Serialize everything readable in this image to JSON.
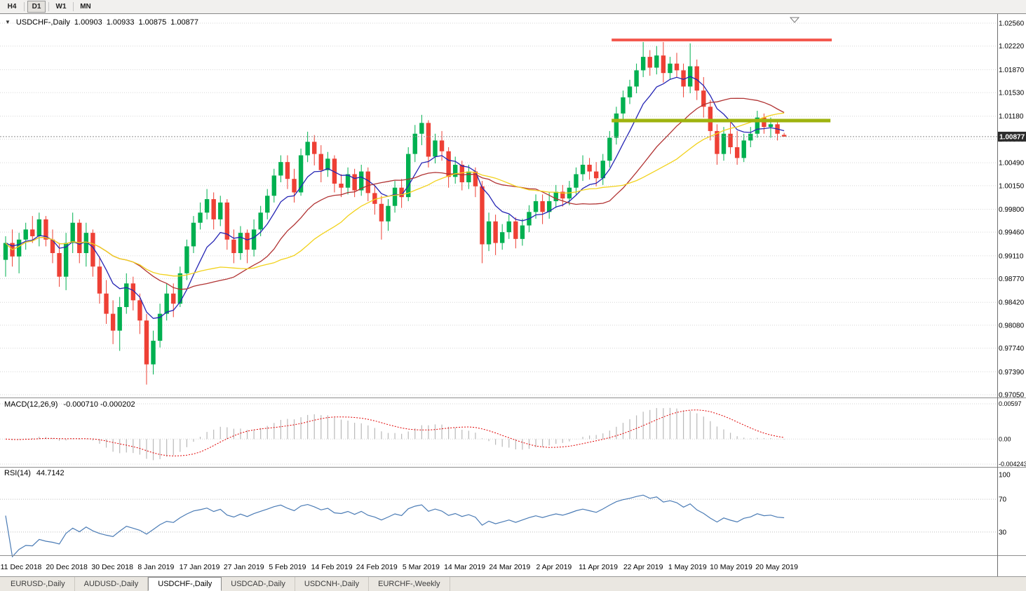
{
  "toolbar": {
    "buttons": [
      {
        "label": "H4",
        "active": false
      },
      {
        "label": "D1",
        "active": true
      },
      {
        "label": "W1",
        "active": false
      },
      {
        "label": "MN",
        "active": false
      }
    ]
  },
  "chart_data": {
    "type": "candlestick",
    "symbol": "USDCHF-",
    "timeframe": "Daily",
    "title": {
      "symbol_label": "USDCHF-,Daily",
      "open": "1.00903",
      "high": "1.00933",
      "low": "1.00875",
      "close": "1.00877"
    },
    "current_price": "1.00877",
    "colors": {
      "up": "#00b050",
      "down": "#ee4035",
      "grid": "#d6d6d6",
      "background": "#ffffff",
      "last_price_line": "#8f8f8f",
      "last_price_tag": "#2b2b2b"
    },
    "price_axis": {
      "max": 1.0256,
      "min": 0.9705,
      "labels": [
        "1.02560",
        "1.02220",
        "1.01870",
        "1.01530",
        "1.01180",
        "1.00840",
        "1.00490",
        "1.00150",
        "0.99800",
        "0.99460",
        "0.99110",
        "0.98770",
        "0.98420",
        "0.98080",
        "0.97740",
        "0.97390",
        "0.97050"
      ]
    },
    "date_axis": {
      "labels": [
        {
          "label": "11 Dec 2018",
          "pos": 2.3
        },
        {
          "label": "20 Dec 2018",
          "pos": 9.1
        },
        {
          "label": "30 Dec 2018",
          "pos": 15.9
        },
        {
          "label": "8 Jan 2019",
          "pos": 22.4
        },
        {
          "label": "17 Jan 2019",
          "pos": 28.9
        },
        {
          "label": "27 Jan 2019",
          "pos": 35.5
        },
        {
          "label": "5 Feb 2019",
          "pos": 42.0
        },
        {
          "label": "14 Feb 2019",
          "pos": 48.6
        },
        {
          "label": "24 Feb 2019",
          "pos": 55.3
        },
        {
          "label": "5 Mar 2019",
          "pos": 61.9
        },
        {
          "label": "14 Mar 2019",
          "pos": 68.4
        },
        {
          "label": "24 Mar 2019",
          "pos": 75.1
        },
        {
          "label": "2 Apr 2019",
          "pos": 81.7
        },
        {
          "label": "11 Apr 2019",
          "pos": 88.3
        },
        {
          "label": "22 Apr 2019",
          "pos": 95.0
        },
        {
          "label": "1 May 2019",
          "pos": 101.6
        },
        {
          "label": "10 May 2019",
          "pos": 108.1
        },
        {
          "label": "20 May 2019",
          "pos": 114.9
        }
      ]
    },
    "ohlc": [
      [
        0.9905,
        0.994,
        0.988,
        0.993
      ],
      [
        0.993,
        0.995,
        0.9895,
        0.991
      ],
      [
        0.991,
        0.9945,
        0.9885,
        0.9935
      ],
      [
        0.9935,
        0.996,
        0.992,
        0.995
      ],
      [
        0.995,
        0.997,
        0.993,
        0.994
      ],
      [
        0.994,
        0.9975,
        0.9925,
        0.9965
      ],
      [
        0.9965,
        0.997,
        0.9925,
        0.9935
      ],
      [
        0.9935,
        0.995,
        0.99,
        0.9915
      ],
      [
        0.9915,
        0.993,
        0.9865,
        0.988
      ],
      [
        0.988,
        0.9945,
        0.986,
        0.993
      ],
      [
        0.993,
        0.9975,
        0.9915,
        0.996
      ],
      [
        0.996,
        0.9965,
        0.99,
        0.9915
      ],
      [
        0.9915,
        0.996,
        0.9895,
        0.9945
      ],
      [
        0.9945,
        0.995,
        0.988,
        0.9895
      ],
      [
        0.9895,
        0.991,
        0.984,
        0.9855
      ],
      [
        0.9855,
        0.9875,
        0.981,
        0.9825
      ],
      [
        0.9825,
        0.9845,
        0.978,
        0.98
      ],
      [
        0.98,
        0.985,
        0.977,
        0.9835
      ],
      [
        0.9835,
        0.9885,
        0.9825,
        0.987
      ],
      [
        0.987,
        0.988,
        0.983,
        0.9845
      ],
      [
        0.9845,
        0.9855,
        0.9795,
        0.9815
      ],
      [
        0.9815,
        0.9825,
        0.972,
        0.975
      ],
      [
        0.975,
        0.98,
        0.9735,
        0.9785
      ],
      [
        0.9785,
        0.984,
        0.9775,
        0.9825
      ],
      [
        0.9825,
        0.987,
        0.9815,
        0.9855
      ],
      [
        0.9855,
        0.987,
        0.982,
        0.984
      ],
      [
        0.984,
        0.9895,
        0.9835,
        0.9885
      ],
      [
        0.9885,
        0.9935,
        0.9875,
        0.9925
      ],
      [
        0.9925,
        0.997,
        0.9915,
        0.996
      ],
      [
        0.996,
        0.999,
        0.995,
        0.9975
      ],
      [
        0.9975,
        1.001,
        0.9965,
        0.9995
      ],
      [
        0.9995,
        1.0005,
        0.995,
        0.9965
      ],
      [
        0.9965,
        1.0,
        0.9955,
        0.999
      ],
      [
        0.999,
        0.9995,
        0.992,
        0.9935
      ],
      [
        0.9935,
        0.995,
        0.99,
        0.9915
      ],
      [
        0.9915,
        0.9955,
        0.9905,
        0.9945
      ],
      [
        0.9945,
        0.995,
        0.99,
        0.992
      ],
      [
        0.992,
        0.9965,
        0.991,
        0.995
      ],
      [
        0.995,
        0.9985,
        0.994,
        0.9975
      ],
      [
        0.9975,
        1.001,
        0.9965,
        1.0
      ],
      [
        1.0,
        1.004,
        0.999,
        1.003
      ],
      [
        1.003,
        1.006,
        1.002,
        1.005
      ],
      [
        1.005,
        1.006,
        1.001,
        1.0025
      ],
      [
        1.0025,
        1.004,
        0.999,
        1.0005
      ],
      [
        1.0005,
        1.007,
        1.0,
        1.006
      ],
      [
        1.006,
        1.0095,
        1.005,
        1.008
      ],
      [
        1.008,
        1.009,
        1.0045,
        1.0062
      ],
      [
        1.0062,
        1.0075,
        1.002,
        1.0038
      ],
      [
        1.0038,
        1.0065,
        1.0028,
        1.0055
      ],
      [
        1.0055,
        1.006,
        1.0005,
        1.0018
      ],
      [
        1.0018,
        1.0032,
        0.9998,
        1.0012
      ],
      [
        1.0012,
        1.0042,
        1.0002,
        1.0032
      ],
      [
        1.0032,
        1.004,
        0.9998,
        1.0008
      ],
      [
        1.0008,
        1.0046,
        1.0,
        1.0036
      ],
      [
        1.0036,
        1.0042,
        0.9992,
        1.0004
      ],
      [
        1.0004,
        1.0016,
        0.9972,
        0.9988
      ],
      [
        0.9988,
        1.0,
        0.9935,
        0.9962
      ],
      [
        0.9962,
        0.9995,
        0.9948,
        0.9985
      ],
      [
        0.9985,
        1.0022,
        0.9975,
        1.0012
      ],
      [
        1.0012,
        1.0025,
        0.9982,
        0.9998
      ],
      [
        0.9998,
        1.0072,
        0.9992,
        1.0062
      ],
      [
        1.0062,
        1.0105,
        1.005,
        1.0092
      ],
      [
        1.0092,
        1.012,
        1.0075,
        1.0108
      ],
      [
        1.0108,
        1.0112,
        1.0042,
        1.0058
      ],
      [
        1.0058,
        1.0092,
        1.0048,
        1.0082
      ],
      [
        1.0082,
        1.0096,
        1.0052,
        1.0066
      ],
      [
        1.0066,
        1.0072,
        1.0012,
        1.0028
      ],
      [
        1.0028,
        1.0058,
        1.0018,
        1.0046
      ],
      [
        1.0046,
        1.0052,
        1.0008,
        1.002
      ],
      [
        1.002,
        1.0046,
        1.001,
        1.0036
      ],
      [
        1.0036,
        1.0042,
        0.9998,
        1.0014
      ],
      [
        1.0014,
        1.0022,
        0.99,
        0.9928
      ],
      [
        0.9928,
        0.9975,
        0.9918,
        0.9962
      ],
      [
        0.9962,
        0.9972,
        0.9912,
        0.993
      ],
      [
        0.993,
        0.9958,
        0.992,
        0.9946
      ],
      [
        0.9946,
        0.9972,
        0.9936,
        0.9962
      ],
      [
        0.9962,
        0.9968,
        0.9922,
        0.9936
      ],
      [
        0.9936,
        0.9966,
        0.9926,
        0.9956
      ],
      [
        0.9956,
        0.9986,
        0.9946,
        0.9976
      ],
      [
        0.9976,
        1.0002,
        0.9966,
        0.9992
      ],
      [
        0.9992,
        1.0002,
        0.9958,
        0.9976
      ],
      [
        0.9976,
        1.0006,
        0.9966,
        0.9992
      ],
      [
        0.9992,
        1.0016,
        0.9982,
        1.0006
      ],
      [
        1.0006,
        1.0016,
        0.9984,
        0.9996
      ],
      [
        0.9996,
        1.0022,
        0.9986,
        1.0012
      ],
      [
        1.0012,
        1.0042,
        1.0002,
        1.0032
      ],
      [
        1.0032,
        1.006,
        1.0022,
        1.0046
      ],
      [
        1.0046,
        1.0056,
        1.0024,
        1.0036
      ],
      [
        1.0036,
        1.005,
        1.0014,
        1.0026
      ],
      [
        1.0026,
        1.0062,
        1.0016,
        1.0052
      ],
      [
        1.0052,
        1.0096,
        1.0042,
        1.0086
      ],
      [
        1.0086,
        1.0132,
        1.0076,
        1.0122
      ],
      [
        1.0122,
        1.0156,
        1.0112,
        1.0146
      ],
      [
        1.0146,
        1.0172,
        1.0136,
        1.0162
      ],
      [
        1.0162,
        1.0196,
        1.0152,
        1.0186
      ],
      [
        1.0186,
        1.0228,
        1.0176,
        1.0206
      ],
      [
        1.0206,
        1.0216,
        1.0178,
        1.019
      ],
      [
        1.019,
        1.0222,
        1.018,
        1.0208
      ],
      [
        1.0208,
        1.0228,
        1.0168,
        1.0182
      ],
      [
        1.0182,
        1.0206,
        1.0172,
        1.0196
      ],
      [
        1.0196,
        1.0212,
        1.0176,
        1.0186
      ],
      [
        1.0186,
        1.0196,
        1.0146,
        1.0162
      ],
      [
        1.0162,
        1.0226,
        1.0152,
        1.0192
      ],
      [
        1.0192,
        1.0202,
        1.0142,
        1.0156
      ],
      [
        1.0156,
        1.0176,
        1.0116,
        1.0132
      ],
      [
        1.0132,
        1.0142,
        1.0082,
        1.0096
      ],
      [
        1.0096,
        1.0106,
        1.0046,
        1.0062
      ],
      [
        1.0062,
        1.0102,
        1.0052,
        1.0092
      ],
      [
        1.0092,
        1.0112,
        1.0062,
        1.0072
      ],
      [
        1.0072,
        1.0096,
        1.0046,
        1.0056
      ],
      [
        1.0056,
        1.0092,
        1.005,
        1.0082
      ],
      [
        1.0082,
        1.0102,
        1.0072,
        1.0092
      ],
      [
        1.0092,
        1.0126,
        1.0086,
        1.0116
      ],
      [
        1.0116,
        1.0122,
        1.0092,
        1.0102
      ],
      [
        1.0102,
        1.0116,
        1.0086,
        1.0106
      ],
      [
        1.0106,
        1.0112,
        1.0082,
        1.0092
      ],
      [
        1.00903,
        1.00933,
        1.00875,
        1.00877
      ]
    ],
    "overlays": {
      "moving_averages": [
        {
          "name": "fast-ma-line",
          "type": "ema",
          "period": 8,
          "color": "#2525b4"
        },
        {
          "name": "medium-ma-line",
          "type": "sma",
          "period": 20,
          "color": "#b13333"
        },
        {
          "name": "slow-ma-line",
          "type": "sma",
          "period": 30,
          "color": "#f2d21c"
        }
      ],
      "hlines": [
        {
          "name": "resistance-line",
          "price": 1.0231,
          "color": "#f4594f",
          "width": 4,
          "from_index": 90.3,
          "to_index": 123.1
        },
        {
          "name": "support-line",
          "price": 1.01115,
          "color": "#9fb30f",
          "width": 5,
          "from_index": 90.3,
          "to_index": 122.9
        }
      ]
    },
    "indicators": {
      "macd": {
        "label": "MACD(12,26,9)",
        "values_text": "-0.000710 -0.000202",
        "fast": 12,
        "slow": 26,
        "signal": 9,
        "axis_max": 0.00597,
        "axis_min": -0.004243,
        "axis_labels": [
          "0.00597",
          "0.00",
          "-0.004243"
        ],
        "histogram_color": "#b9b9b9",
        "signal_color": "#e00000"
      },
      "rsi": {
        "label": "RSI(14)",
        "value_text": "44.7142",
        "period": 14,
        "levels": [
          70,
          30
        ],
        "axis_labels": [
          "100",
          "70",
          "30"
        ],
        "line_color": "#4a7bb5"
      }
    }
  },
  "tabs": [
    {
      "label": "EURUSD-,Daily",
      "active": false
    },
    {
      "label": "AUDUSD-,Daily",
      "active": false
    },
    {
      "label": "USDCHF-,Daily",
      "active": true
    },
    {
      "label": "USDCAD-,Daily",
      "active": false
    },
    {
      "label": "USDCNH-,Daily",
      "active": false
    },
    {
      "label": "EURCHF-,Weekly",
      "active": false
    }
  ]
}
